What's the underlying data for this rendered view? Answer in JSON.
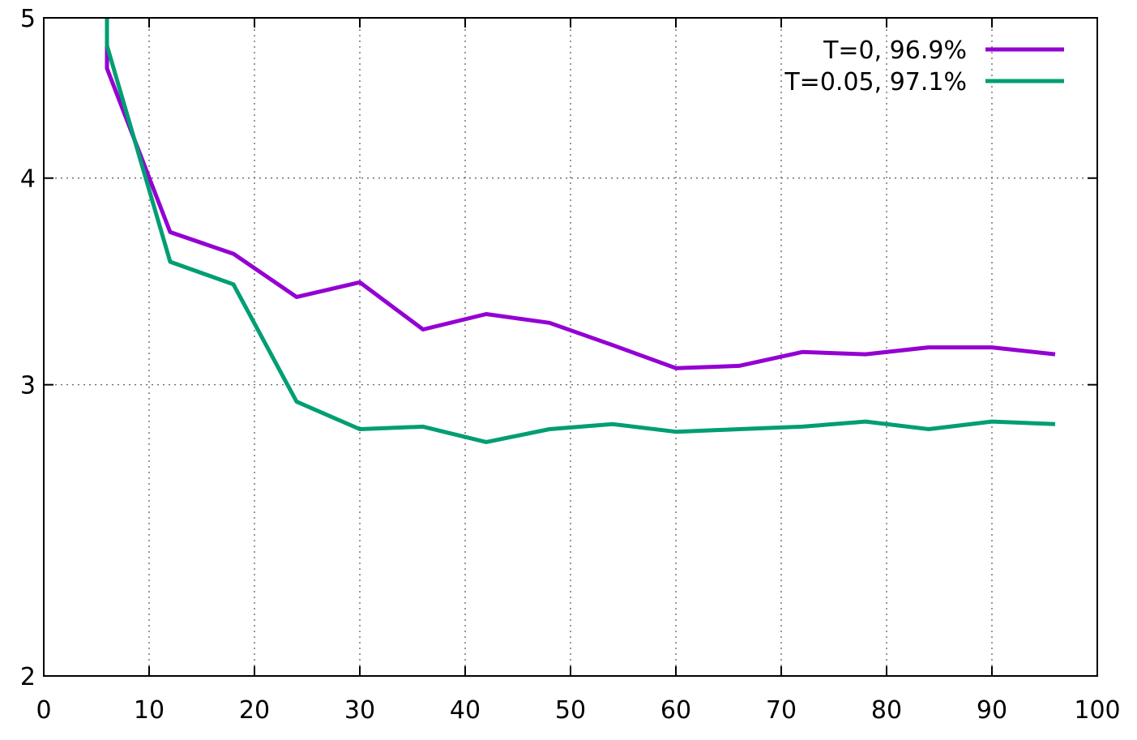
{
  "chart_data": {
    "type": "line",
    "title": "",
    "xlabel": "",
    "ylabel": "",
    "xlim": [
      0,
      100
    ],
    "ylim": [
      2,
      5
    ],
    "yscale": "log",
    "grid": true,
    "legend_position": "top-right",
    "x_ticks": [
      0,
      10,
      20,
      30,
      40,
      50,
      60,
      70,
      80,
      90,
      100
    ],
    "y_ticks": [
      2,
      3,
      4,
      5
    ],
    "series": [
      {
        "name": "T=0, 96.9%",
        "color": "#9400d3",
        "x": [
          6,
          6,
          12,
          18,
          24,
          30,
          36,
          42,
          48,
          54,
          60,
          66,
          72,
          78,
          84,
          90,
          96
        ],
        "y": [
          5.0,
          4.66,
          3.71,
          3.6,
          3.39,
          3.46,
          3.24,
          3.31,
          3.27,
          3.17,
          3.07,
          3.08,
          3.14,
          3.13,
          3.16,
          3.16,
          3.13
        ]
      },
      {
        "name": "T=0.05, 97.1%",
        "color": "#009e73",
        "x": [
          6,
          6,
          12,
          18,
          24,
          30,
          36,
          42,
          48,
          54,
          60,
          66,
          72,
          78,
          84,
          90,
          96
        ],
        "y": [
          5.0,
          4.81,
          3.56,
          3.45,
          2.93,
          2.82,
          2.83,
          2.77,
          2.82,
          2.84,
          2.81,
          2.82,
          2.83,
          2.85,
          2.82,
          2.85,
          2.84
        ]
      }
    ]
  }
}
